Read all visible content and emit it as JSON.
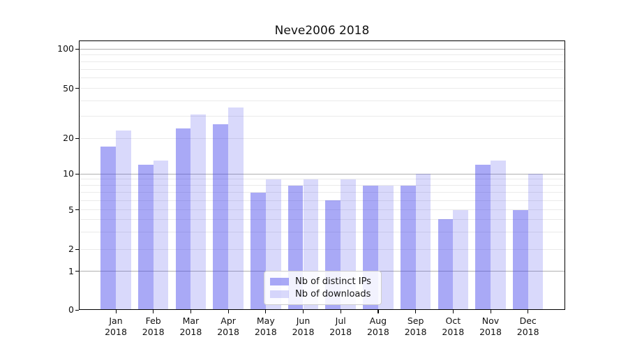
{
  "title": "Neve2006 2018",
  "chart_data": {
    "type": "bar",
    "title": "Neve2006 2018",
    "categories": [
      "Jan 2018",
      "Feb 2018",
      "Mar 2018",
      "Apr 2018",
      "May 2018",
      "Jun 2018",
      "Jul 2018",
      "Aug 2018",
      "Sep 2018",
      "Oct 2018",
      "Nov 2018",
      "Dec 2018"
    ],
    "series": [
      {
        "name": "Nb of distinct IPs",
        "values": [
          17,
          12,
          24,
          26,
          7,
          8,
          6,
          8,
          8,
          4,
          12,
          5
        ]
      },
      {
        "name": "Nb of downloads",
        "values": [
          23,
          13,
          31,
          35,
          9,
          9,
          9,
          8,
          10,
          5,
          13,
          10
        ]
      }
    ],
    "yscale": "log",
    "ylim": [
      0,
      100
    ],
    "y_ticks": [
      0,
      1,
      2,
      5,
      10,
      20,
      50,
      100
    ],
    "y_minor_gridlines": [
      2,
      3,
      4,
      5,
      6,
      7,
      8,
      9,
      20,
      30,
      40,
      50,
      60,
      70,
      80,
      90
    ],
    "y_major_gridlines": [
      1,
      10,
      100
    ],
    "grid": true,
    "legend_position": "lower center"
  },
  "legend": {
    "items": [
      {
        "label": "Nb of distinct IPs"
      },
      {
        "label": "Nb of downloads"
      }
    ]
  },
  "colors": {
    "series": [
      "rgba(64,64,236,0.45)",
      "rgba(64,64,236,0.20)"
    ],
    "grid_major": "#b0b0b0",
    "grid_minor": "#eaeaea",
    "axis": "#000000",
    "legend_bg": "rgba(255,255,255,0.85)",
    "legend_border": "#cccccc"
  }
}
